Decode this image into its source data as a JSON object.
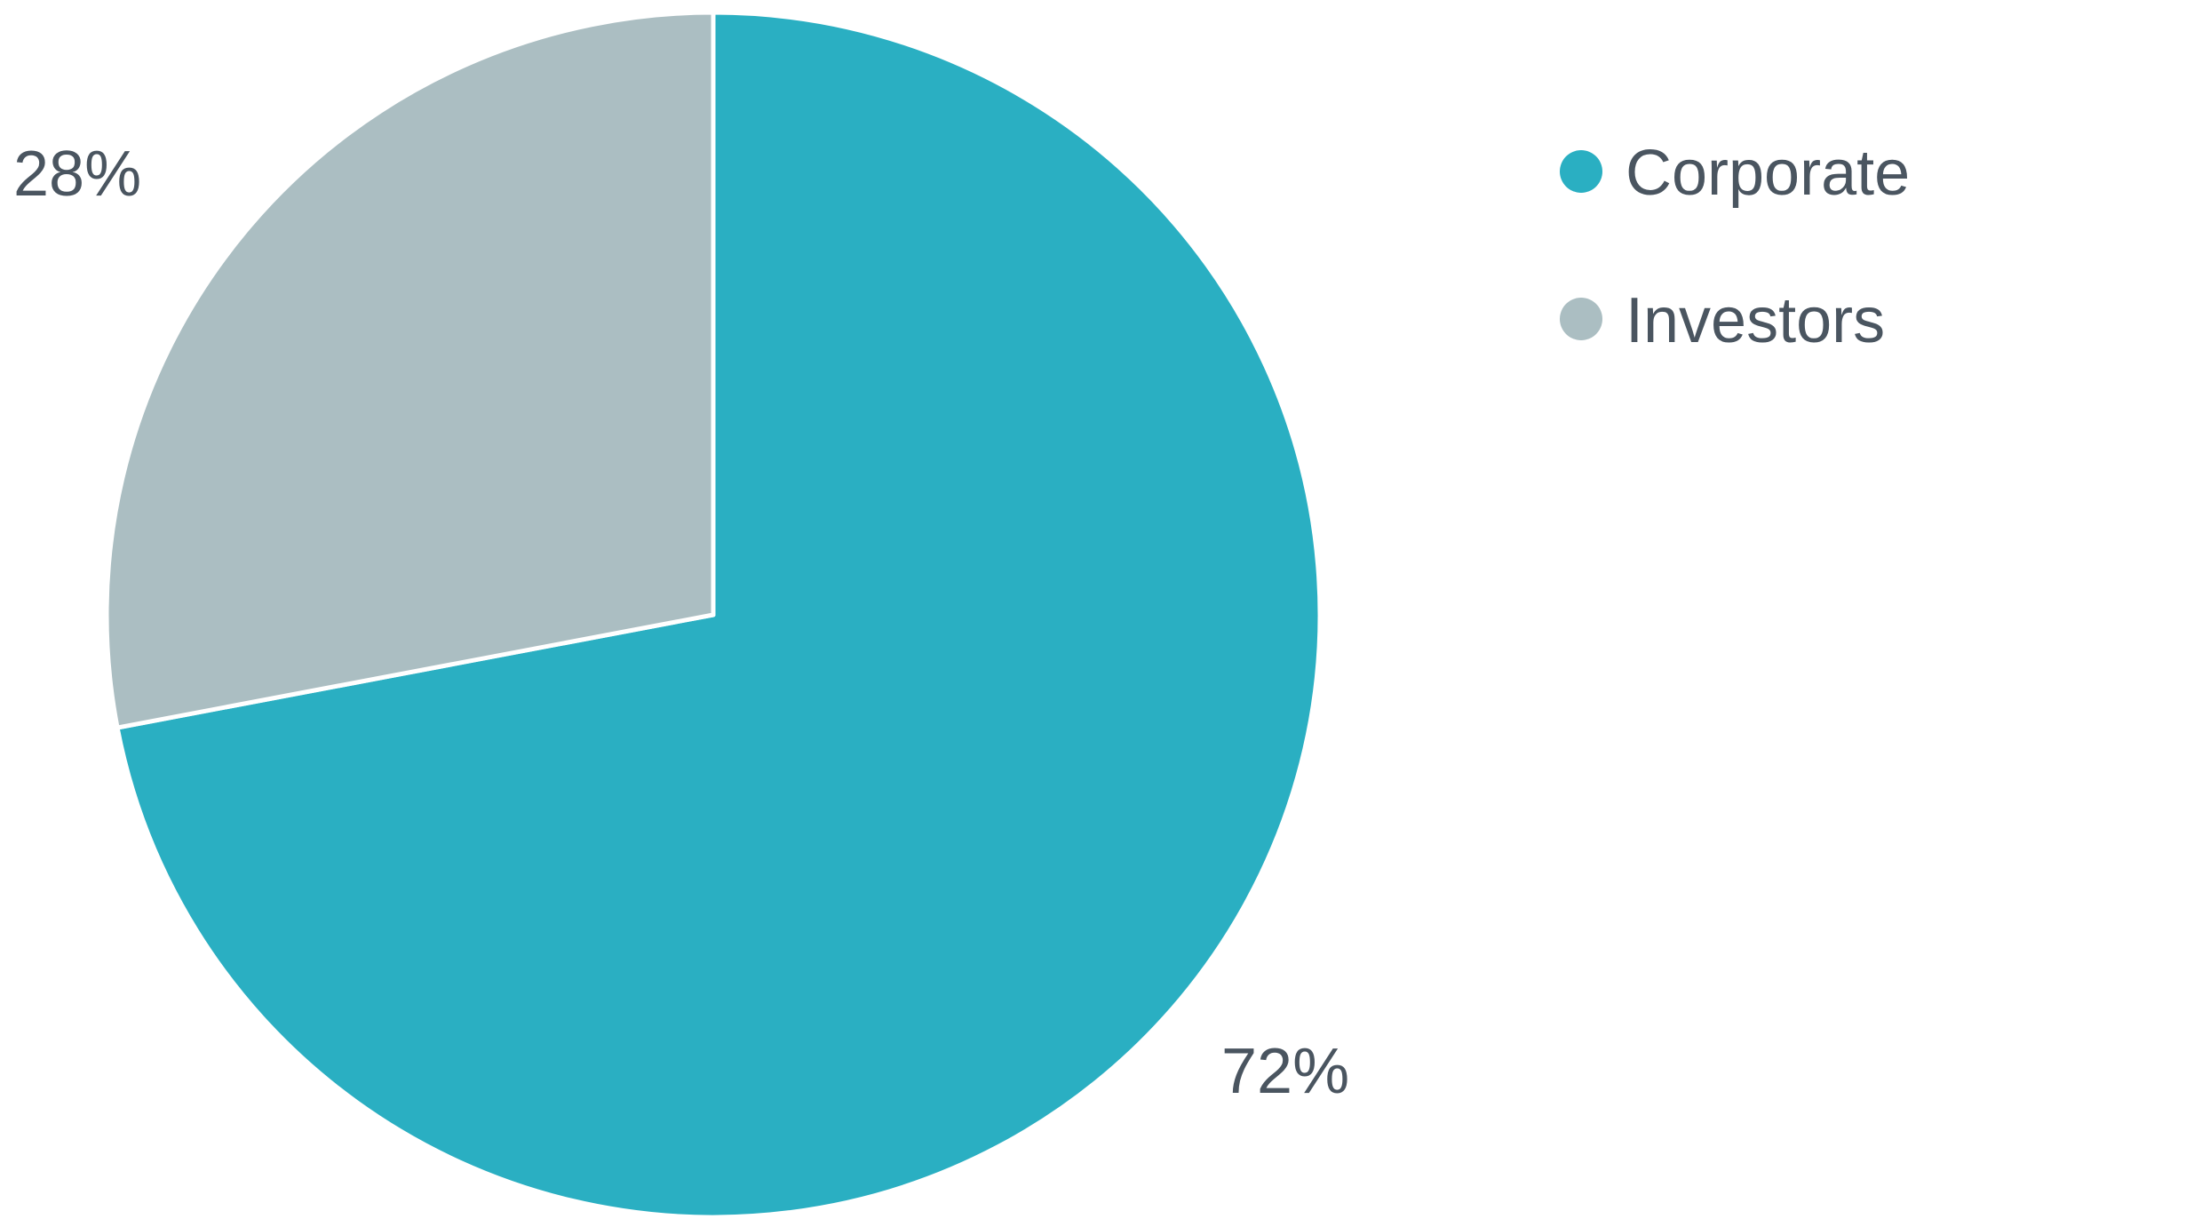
{
  "chart_data": {
    "type": "pie",
    "title": "",
    "slices": [
      {
        "label": "Corporate",
        "value": 72,
        "display": "72%",
        "color": "#2aafc2"
      },
      {
        "label": "Investors",
        "value": 28,
        "display": "28%",
        "color": "#abbec2"
      }
    ],
    "start_angle": "12 o'clock",
    "direction": "clockwise",
    "legend": {
      "position": "top-right",
      "marker": "circle"
    }
  }
}
